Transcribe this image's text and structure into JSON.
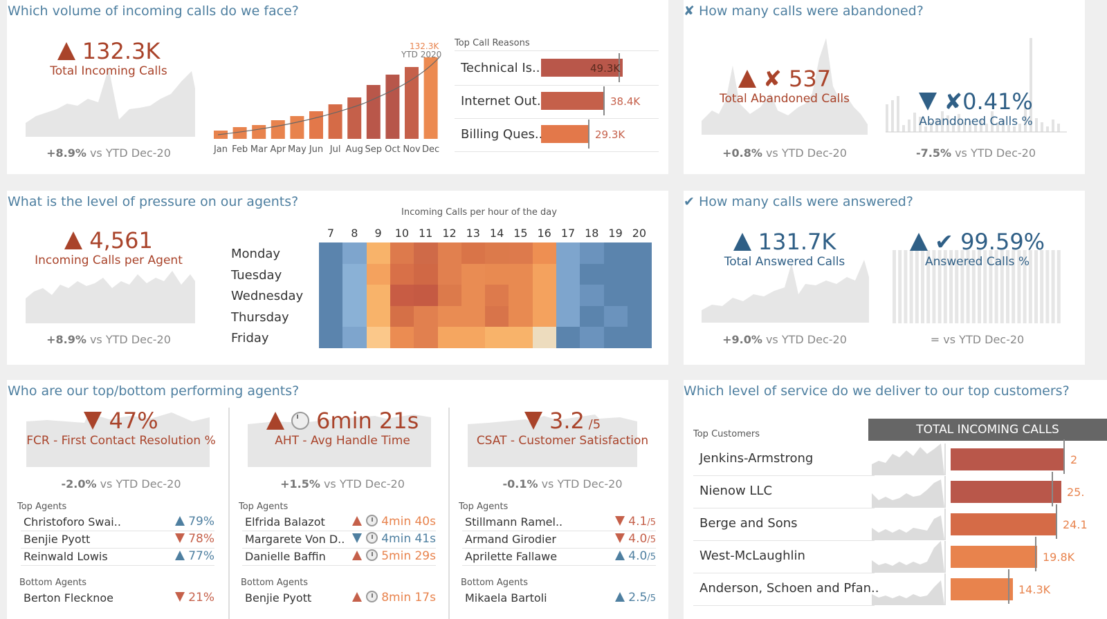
{
  "volume": {
    "question": "Which volume of incoming calls do we face?",
    "kpi_value": "132.3K",
    "kpi_label": "Total Incoming Calls",
    "cmp_delta": "+8.9%",
    "cmp_text": " vs YTD Dec-20",
    "bar_peak_label": "132.3K",
    "ytd_label": "YTD 2020",
    "months": [
      "Jan",
      "Feb",
      "Mar",
      "Apr",
      "May",
      "Jun",
      "Jul",
      "Aug",
      "Sep",
      "Oct",
      "Nov",
      "Dec"
    ],
    "reasons_title": "Top Call Reasons",
    "reasons": [
      {
        "name": "Technical Is..",
        "value": "49.3K"
      },
      {
        "name": "Internet Out..",
        "value": "38.4K"
      },
      {
        "name": "Billing Ques..",
        "value": "29.3K"
      }
    ]
  },
  "abandoned": {
    "question": "✘ How many calls were abandoned?",
    "kpi_value": "✘ 537",
    "kpi_label": "Total Abandoned Calls",
    "cmp_delta": "+0.8%",
    "cmp_text": " vs YTD Dec-20",
    "pct_value": "✘0.41%",
    "pct_label": "Abandoned Calls %",
    "pct_cmp_delta": "-7.5%",
    "pct_cmp_text": " vs YTD Dec-20"
  },
  "pressure": {
    "question": "What is the level of pressure on our agents?",
    "kpi_value": "4,561",
    "kpi_label": "Incoming Calls per Agent",
    "cmp_delta": "+8.9%",
    "cmp_text": " vs YTD Dec-20",
    "heat_title_a": "Incoming Calls",
    "heat_title_b": " per hour of the day",
    "hours": [
      "7",
      "8",
      "9",
      "10",
      "11",
      "12",
      "13",
      "14",
      "15",
      "16",
      "17",
      "18",
      "19",
      "20"
    ],
    "days": [
      "Monday",
      "Tuesday",
      "Wednesday",
      "Thursday",
      "Friday"
    ]
  },
  "answered": {
    "question": "✔ How many calls were answered?",
    "kpi_value": "131.7K",
    "kpi_label": "Total Answered Calls",
    "cmp_delta": "+9.0%",
    "cmp_text": " vs YTD Dec-20",
    "pct_value": "✔ 99.59%",
    "pct_label": "Answered Calls %",
    "pct_cmp": "= vs YTD Dec-20"
  },
  "agents": {
    "question": "Who are our top/bottom performing agents?",
    "top_title": "Top Agents",
    "bottom_title": "Bottom Agents",
    "fcr": {
      "value": "47%",
      "label": "FCR - First Contact Resolution %",
      "cmp_delta": "-2.0%",
      "cmp_text": " vs YTD Dec-20",
      "top": [
        {
          "name": "Christoforo Swai..",
          "value": "79%",
          "dir": "up"
        },
        {
          "name": "Benjie Pyott",
          "value": "78%",
          "dir": "down"
        },
        {
          "name": "Reinwald Lowis",
          "value": "77%",
          "dir": "up"
        }
      ],
      "bottom": [
        {
          "name": "Berton Flecknoe",
          "value": "21%",
          "dir": "down"
        }
      ]
    },
    "aht": {
      "value": "6min 21s",
      "label": "AHT - Avg Handle Time",
      "cmp_delta": "+1.5%",
      "cmp_text": " vs YTD Dec-20",
      "top": [
        {
          "name": "Elfrida Balazot",
          "value": "4min 40s",
          "dir": "up"
        },
        {
          "name": "Margarete Von D..",
          "value": "4min 41s",
          "dir": "down"
        },
        {
          "name": "Danielle Baffin",
          "value": "5min 29s",
          "dir": "up"
        }
      ],
      "bottom": [
        {
          "name": "Benjie Pyott",
          "value": "8min 17s",
          "dir": "up"
        }
      ]
    },
    "csat": {
      "value": "3.2",
      "unit": "/5",
      "label": "CSAT - Customer Satisfaction",
      "cmp_delta": "-0.1%",
      "cmp_text": " vs YTD Dec-20",
      "top": [
        {
          "name": "Stillmann Ramel..",
          "value": "4.1",
          "dir": "down"
        },
        {
          "name": "Armand Girodier",
          "value": "4.0",
          "dir": "down"
        },
        {
          "name": "Aprilette Fallawe",
          "value": "4.0",
          "dir": "up"
        }
      ],
      "bottom": [
        {
          "name": "Mikaela Bartoli",
          "value": "2.5",
          "dir": "up"
        }
      ]
    }
  },
  "customers": {
    "question": "Which level of service do we deliver to our top customers?",
    "col_title": "Top Customers",
    "header": "TOTAL INCOMING CALLS",
    "rows": [
      {
        "name": "Jenkins-Armstrong",
        "value": "2"
      },
      {
        "name": "Nienow LLC",
        "value": "25."
      },
      {
        "name": "Berge and Sons",
        "value": "24.1"
      },
      {
        "name": "West-McLaughlin",
        "value": "19.8K"
      },
      {
        "name": "Anderson, Schoen and Pfan..",
        "value": "14.3K"
      }
    ]
  },
  "colors": {
    "red": "#a9432a",
    "blue": "#2f5f86",
    "title": "#4e7fa0",
    "orange": "#e8834d",
    "header_bg": "#666666"
  }
}
